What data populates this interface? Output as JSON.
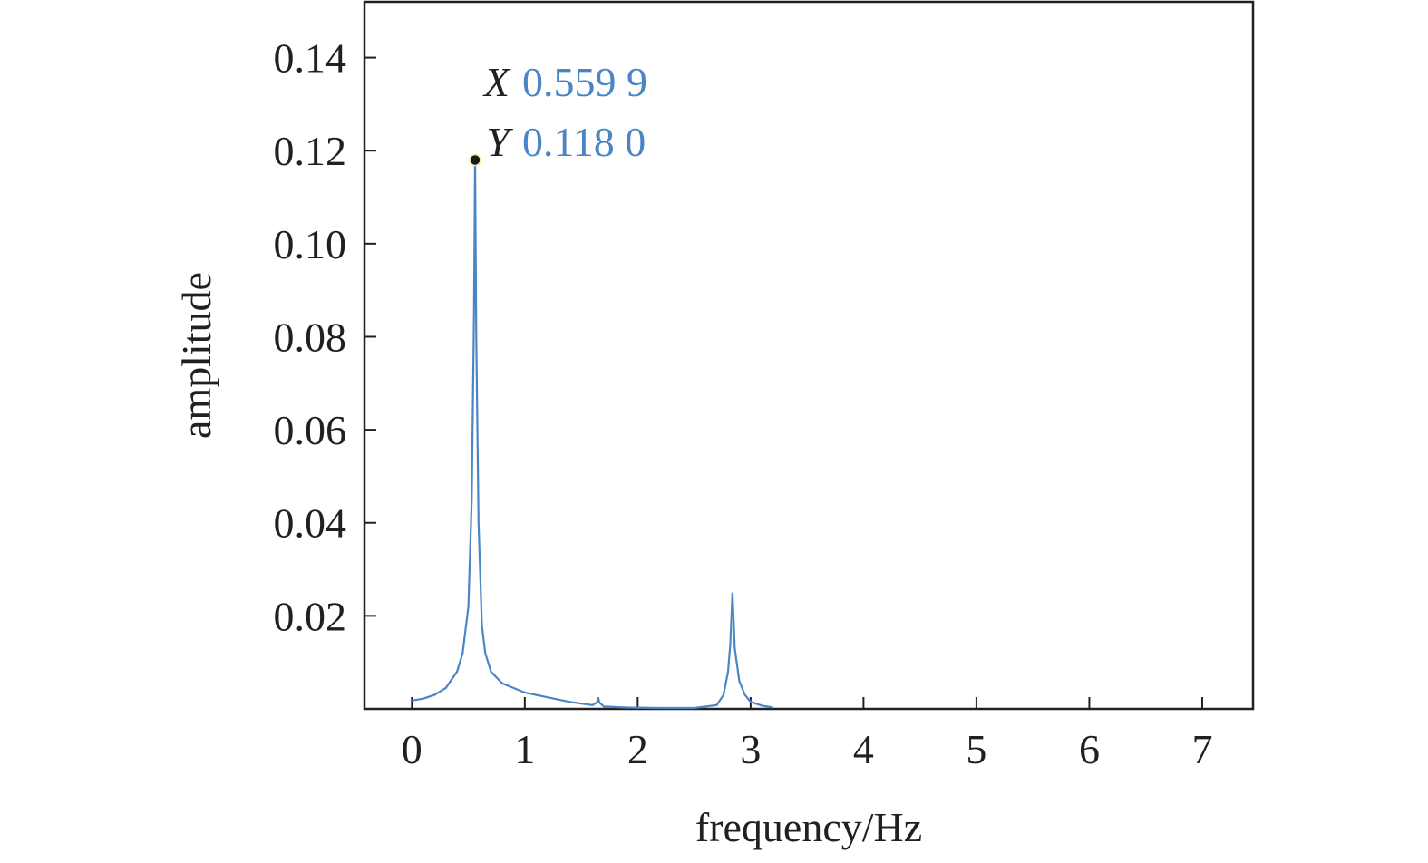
{
  "chart_data": {
    "type": "line",
    "xlabel": "frequency/Hz",
    "ylabel": "amplitude",
    "xlim": [
      -0.42,
      7.45
    ],
    "ylim": [
      0,
      0.152
    ],
    "x_ticks": [
      0,
      1,
      2,
      3,
      4,
      5,
      6,
      7
    ],
    "y_ticks": [
      0.02,
      0.04,
      0.06,
      0.08,
      0.1,
      0.12,
      0.14
    ],
    "x_tick_labels": [
      "0",
      "1",
      "2",
      "3",
      "4",
      "5",
      "6",
      "7"
    ],
    "y_tick_labels": [
      "0.02",
      "0.04",
      "0.06",
      "0.08",
      "0.10",
      "0.12",
      "0.14"
    ],
    "grid": false,
    "line_color": "#4a86c5",
    "series": [
      {
        "x": [
          0.0,
          0.1,
          0.2,
          0.3,
          0.4,
          0.45,
          0.5,
          0.53,
          0.55,
          0.5599,
          0.57,
          0.59,
          0.62,
          0.65,
          0.7,
          0.8,
          0.9,
          1.0,
          1.2,
          1.4,
          1.6,
          1.64,
          1.65,
          1.66,
          1.7,
          1.9,
          2.2,
          2.5,
          2.7,
          2.76,
          2.8,
          2.82,
          2.84,
          2.86,
          2.9,
          2.95,
          3.0,
          3.1,
          3.2
        ],
        "y": [
          0.0018,
          0.0022,
          0.003,
          0.0045,
          0.008,
          0.012,
          0.022,
          0.045,
          0.085,
          0.118,
          0.08,
          0.04,
          0.018,
          0.012,
          0.008,
          0.0055,
          0.0045,
          0.0035,
          0.0025,
          0.0015,
          0.0008,
          0.0014,
          0.0025,
          0.0014,
          0.0005,
          0.0003,
          0.0002,
          0.0002,
          0.0008,
          0.003,
          0.008,
          0.014,
          0.025,
          0.013,
          0.006,
          0.003,
          0.0015,
          0.0007,
          0.0003
        ]
      }
    ],
    "annotation": {
      "x_key": "X",
      "x_value": "0.559 9",
      "y_key": "Y",
      "y_value": "0.118 0",
      "point": [
        0.5599,
        0.118
      ]
    }
  }
}
